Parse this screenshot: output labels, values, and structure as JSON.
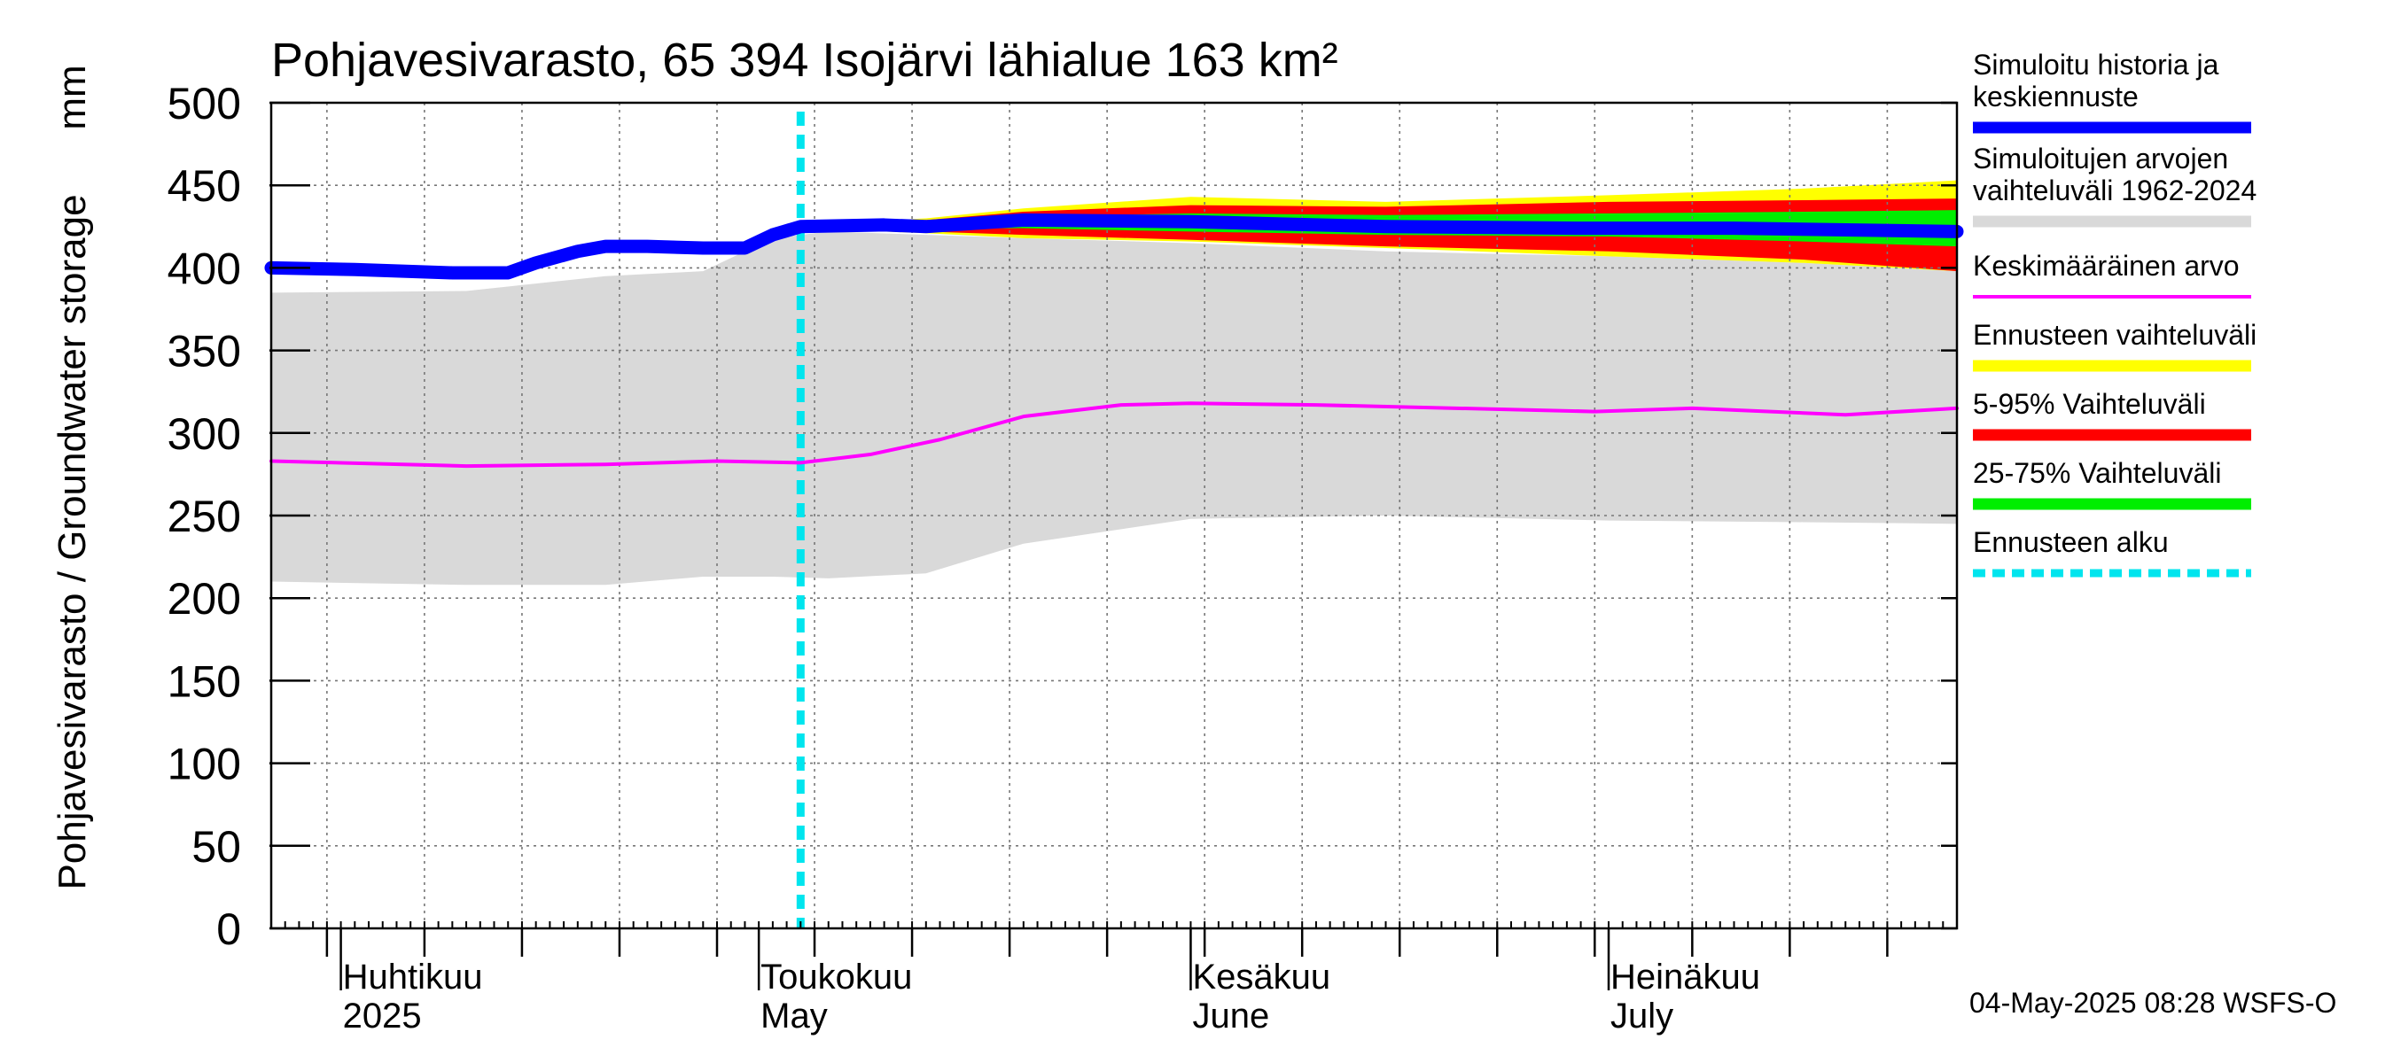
{
  "chart_data": {
    "type": "area",
    "title": "Pohjavesivarasto, 65 394 Isojärvi lähialue 163 km²",
    "ylabel": "Pohjavesivarasto / Groundwater storage",
    "yunit": "mm",
    "ylim": [
      0,
      500
    ],
    "yticks": [
      0,
      50,
      100,
      150,
      200,
      250,
      300,
      350,
      400,
      450,
      500
    ],
    "grid": true,
    "legend_placement": "right",
    "x_range": [
      "2025-03-27",
      "2025-07-26"
    ],
    "forecast_start": "2025-05-04",
    "month_labels": [
      {
        "date": "2025-04-01",
        "line1": "Huhtikuu",
        "line2": "2025"
      },
      {
        "date": "2025-05-01",
        "line1": "Toukokuu",
        "line2": "May"
      },
      {
        "date": "2025-06-01",
        "line1": "Kesäkuu",
        "line2": "June"
      },
      {
        "date": "2025-07-01",
        "line1": "Heinäkuu",
        "line2": "July"
      }
    ],
    "series": [
      {
        "name": "Simuloitu historia ja keskiennuste",
        "color": "#0000ff",
        "style": "line-thick",
        "x": [
          "2025-03-27",
          "2025-04-02",
          "2025-04-09",
          "2025-04-13",
          "2025-04-15",
          "2025-04-18",
          "2025-04-20",
          "2025-04-23",
          "2025-04-27",
          "2025-04-30",
          "2025-05-02",
          "2025-05-04",
          "2025-05-10",
          "2025-05-13",
          "2025-05-20",
          "2025-06-01",
          "2025-06-15",
          "2025-06-29",
          "2025-07-10",
          "2025-07-18",
          "2025-07-26"
        ],
        "values": [
          400,
          399,
          397,
          397,
          403,
          410,
          413,
          413,
          412,
          412,
          420,
          425,
          426,
          425,
          429,
          428,
          425,
          424,
          424,
          423,
          422
        ]
      },
      {
        "name": "Keskimääräinen arvo",
        "color": "#ff00ff",
        "style": "line",
        "x": [
          "2025-03-27",
          "2025-04-10",
          "2025-04-20",
          "2025-04-28",
          "2025-05-04",
          "2025-05-09",
          "2025-05-14",
          "2025-05-20",
          "2025-05-27",
          "2025-06-01",
          "2025-06-10",
          "2025-06-20",
          "2025-06-30",
          "2025-07-07",
          "2025-07-18",
          "2025-07-26"
        ],
        "values": [
          283,
          280,
          281,
          283,
          282,
          287,
          296,
          310,
          317,
          318,
          317,
          315,
          313,
          315,
          311,
          315
        ]
      }
    ],
    "bands": [
      {
        "name": "Simuloitujen arvojen vaihteluväli 1962-2024",
        "color": "#d9d9d9",
        "x": [
          "2025-03-27",
          "2025-04-10",
          "2025-04-20",
          "2025-04-27",
          "2025-05-02",
          "2025-05-06",
          "2025-05-13",
          "2025-05-20",
          "2025-06-01",
          "2025-06-15",
          "2025-07-01",
          "2025-07-15",
          "2025-07-26"
        ],
        "upper": [
          385,
          386,
          395,
          398,
          418,
          422,
          420,
          418,
          415,
          410,
          407,
          403,
          398
        ],
        "lower": [
          210,
          208,
          208,
          213,
          213,
          212,
          215,
          233,
          248,
          250,
          247,
          246,
          245
        ]
      },
      {
        "name": "Ennusteen vaihteluväli",
        "color": "#ffff00",
        "x": [
          "2025-05-04",
          "2025-05-13",
          "2025-05-20",
          "2025-06-01",
          "2025-06-15",
          "2025-07-01",
          "2025-07-15",
          "2025-07-26"
        ],
        "upper": [
          426,
          430,
          436,
          443,
          440,
          444,
          448,
          453
        ],
        "lower": [
          424,
          421,
          418,
          416,
          412,
          407,
          403,
          398
        ]
      },
      {
        "name": "5-95% Vaihteluväli",
        "color": "#ff0000",
        "x": [
          "2025-05-04",
          "2025-05-13",
          "2025-05-20",
          "2025-06-01",
          "2025-06-15",
          "2025-07-01",
          "2025-07-15",
          "2025-07-26"
        ],
        "upper": [
          426,
          429,
          434,
          438,
          437,
          440,
          441,
          442
        ],
        "lower": [
          424,
          422,
          420,
          417,
          413,
          410,
          405,
          398
        ]
      },
      {
        "name": "25-75% Vaihteluväli",
        "color": "#00ee00",
        "x": [
          "2025-05-04",
          "2025-05-13",
          "2025-05-20",
          "2025-06-01",
          "2025-06-15",
          "2025-07-01",
          "2025-07-15",
          "2025-07-26"
        ],
        "upper": [
          426,
          428,
          431,
          433,
          432,
          433,
          434,
          435
        ],
        "lower": [
          424,
          424,
          424,
          422,
          420,
          419,
          416,
          413
        ]
      }
    ],
    "forecast_line": {
      "name": "Ennusteen alku",
      "color": "#00e5ee"
    }
  },
  "legend": [
    {
      "lines": [
        "Simuloitu historia ja",
        "keskiennuste"
      ],
      "color": "#0000ff",
      "style": "thick"
    },
    {
      "lines": [
        "Simuloitujen arvojen",
        "vaihteluväli 1962-2024"
      ],
      "color": "#d9d9d9",
      "style": "thick"
    },
    {
      "lines": [
        "Keskimääräinen arvo"
      ],
      "color": "#ff00ff",
      "style": "thin"
    },
    {
      "lines": [
        "Ennusteen vaihteluväli"
      ],
      "color": "#ffff00",
      "style": "thick"
    },
    {
      "lines": [
        "5-95% Vaihteluväli"
      ],
      "color": "#ff0000",
      "style": "thick"
    },
    {
      "lines": [
        "25-75% Vaihteluväli"
      ],
      "color": "#00ee00",
      "style": "thick"
    },
    {
      "lines": [
        "Ennusteen alku"
      ],
      "color": "#00e5ee",
      "style": "dashed"
    }
  ],
  "footer": "04-May-2025 08:28 WSFS-O"
}
